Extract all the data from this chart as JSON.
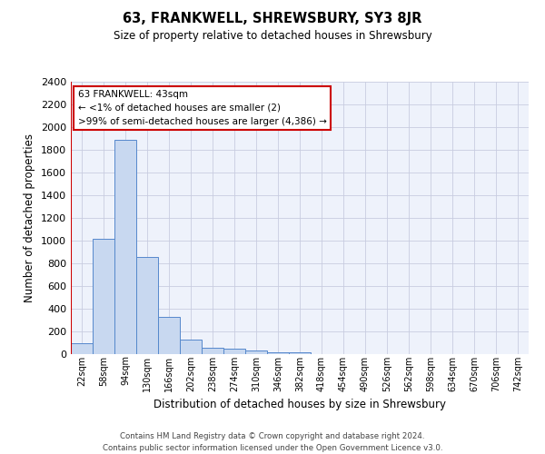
{
  "title": "63, FRANKWELL, SHREWSBURY, SY3 8JR",
  "subtitle": "Size of property relative to detached houses in Shrewsbury",
  "xlabel": "Distribution of detached houses by size in Shrewsbury",
  "ylabel": "Number of detached properties",
  "footer1": "Contains HM Land Registry data © Crown copyright and database right 2024.",
  "footer2": "Contains public sector information licensed under the Open Government Licence v3.0.",
  "annotation_line1": "63 FRANKWELL: 43sqm",
  "annotation_line2": "← <1% of detached houses are smaller (2)",
  "annotation_line3": ">99% of semi-detached houses are larger (4,386) →",
  "bar_color": "#c8d8f0",
  "bar_edge_color": "#5588cc",
  "red_line_color": "#cc0000",
  "annotation_box_edge": "#cc0000",
  "categories": [
    "22sqm",
    "58sqm",
    "94sqm",
    "130sqm",
    "166sqm",
    "202sqm",
    "238sqm",
    "274sqm",
    "310sqm",
    "346sqm",
    "382sqm",
    "418sqm",
    "454sqm",
    "490sqm",
    "526sqm",
    "562sqm",
    "598sqm",
    "634sqm",
    "670sqm",
    "706sqm",
    "742sqm"
  ],
  "values": [
    100,
    1020,
    1890,
    855,
    325,
    125,
    60,
    50,
    35,
    20,
    20,
    0,
    0,
    0,
    0,
    0,
    0,
    0,
    0,
    0,
    0
  ],
  "ylim": [
    0,
    2400
  ],
  "yticks": [
    0,
    200,
    400,
    600,
    800,
    1000,
    1200,
    1400,
    1600,
    1800,
    2000,
    2200,
    2400
  ],
  "bg_color": "#eef2fb",
  "grid_color": "#c8cce0"
}
